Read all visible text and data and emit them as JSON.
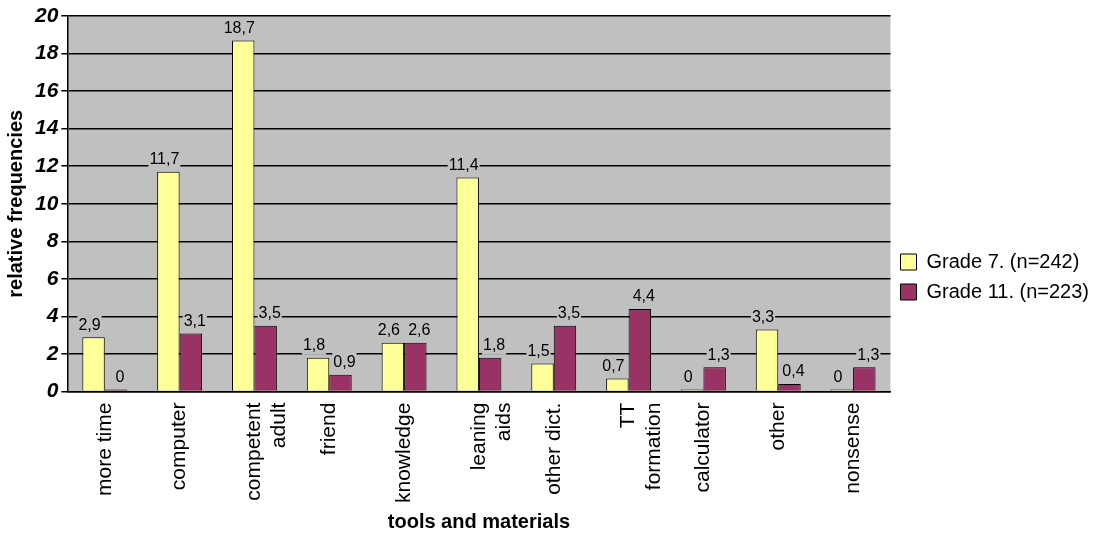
{
  "chart_data": {
    "type": "bar",
    "xlabel": "tools and materials",
    "ylabel": "relative frequencies",
    "categories": [
      "more time",
      "computer",
      "competent\nadult",
      "friend",
      "knowledge",
      "leaning\naids",
      "other dict.",
      "TT\nformation",
      "calculator",
      "other",
      "nonsense"
    ],
    "series": [
      {
        "name": "Grade 7. (n=242)",
        "color": "#ffff99",
        "values": [
          2.9,
          11.7,
          18.7,
          1.8,
          2.6,
          11.4,
          1.5,
          0.7,
          0,
          3.3,
          0
        ],
        "value_labels": [
          "2,9",
          "11,7",
          "18,7",
          "1,8",
          "2,6",
          "11,4",
          "1,5",
          "0,7",
          "0",
          "3,3",
          "0"
        ]
      },
      {
        "name": "Grade 11. (n=223)",
        "color": "#993366",
        "values": [
          0,
          3.1,
          3.5,
          0.9,
          2.6,
          1.8,
          3.5,
          4.4,
          1.3,
          0.4,
          1.3
        ],
        "value_labels": [
          "0",
          "3,1",
          "3,5",
          "0,9",
          "2,6",
          "1,8",
          "3,5",
          "4,4",
          "1,3",
          "0,4",
          "1,3"
        ]
      }
    ],
    "ylim": [
      0,
      20
    ],
    "yticks": [
      0,
      2,
      4,
      6,
      8,
      10,
      12,
      14,
      16,
      18,
      20
    ],
    "grid": "y",
    "legend": "right"
  }
}
